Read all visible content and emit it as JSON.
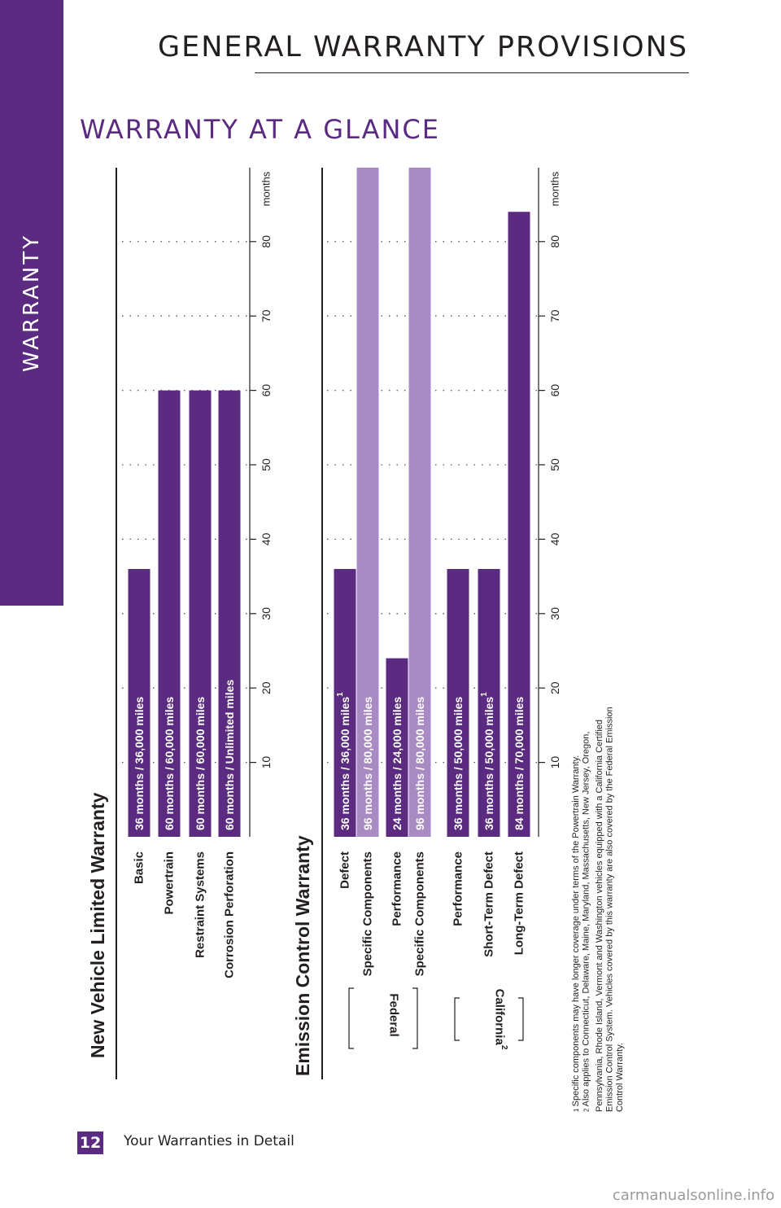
{
  "sidebar": {
    "label": "WARRANTY"
  },
  "header": {
    "title": "GENERAL WARRANTY PROVISIONS"
  },
  "section_title": "WARRANTY AT A GLANCE",
  "footer": {
    "page_number": "12",
    "text": "Your Warranties in Detail"
  },
  "watermark": "carmanualsonline.info",
  "colors": {
    "accent": "#5b2a81",
    "light_bar": "#a98bc3",
    "text": "#231f20"
  },
  "chart_data": [
    {
      "type": "bar",
      "orientation": "rotated-90-ccw",
      "title": "New Vehicle Limited Warranty",
      "axis_unit": "months",
      "ticks": [
        10,
        20,
        30,
        40,
        50,
        60,
        70,
        80
      ],
      "xlim": [
        0,
        90
      ],
      "grid": true,
      "bars": [
        {
          "category": "Basic",
          "months": 36,
          "label": "36 months  /  36,000 miles",
          "note": "",
          "style": "dark"
        },
        {
          "category": "Powertrain",
          "months": 60,
          "label": "60 months  /  60,000 miles",
          "note": "",
          "style": "dark"
        },
        {
          "category": "Restraint Systems",
          "months": 60,
          "label": "60 months  /  60,000 miles",
          "note": "",
          "style": "dark"
        },
        {
          "category": "Corrosion Perforation",
          "months": 60,
          "label": "60 months  /  Unlimited miles",
          "note": "",
          "style": "dark"
        }
      ]
    },
    {
      "type": "bar",
      "orientation": "rotated-90-ccw",
      "title": "Emission Control Warranty",
      "axis_unit": "months",
      "ticks": [
        10,
        20,
        30,
        40,
        50,
        60,
        70,
        80
      ],
      "xlim": [
        0,
        90
      ],
      "grid": true,
      "groups": [
        {
          "label": "Federal",
          "sup": ""
        },
        {
          "label": "California",
          "sup": "2"
        }
      ],
      "bars": [
        {
          "category": "Defect",
          "group": "Federal",
          "months": 36,
          "label": "36 months  /  36,000 miles",
          "note": "1",
          "style": "dark"
        },
        {
          "category": "Specific Components",
          "group": "Federal",
          "months": 96,
          "label": "96 months  /  80,000 miles",
          "note": "",
          "style": "light"
        },
        {
          "category": "Performance",
          "group": "Federal",
          "months": 24,
          "label": "24 months  /  24,000 miles",
          "note": "",
          "style": "dark"
        },
        {
          "category": "Specific Components",
          "group": "Federal",
          "months": 96,
          "label": "96 months  /  80,000 miles",
          "note": "",
          "style": "light"
        },
        {
          "category": "Performance",
          "group": "California",
          "months": 36,
          "label": "36 months  /  50,000 miles",
          "note": "",
          "style": "dark"
        },
        {
          "category": "Short-Term Defect",
          "group": "California",
          "months": 36,
          "label": "36 months  /  50,000 miles",
          "note": "1",
          "style": "dark"
        },
        {
          "category": "Long-Term Defect",
          "group": "California",
          "months": 84,
          "label": "84 months  /  70,000 miles",
          "note": "",
          "style": "dark"
        }
      ]
    }
  ],
  "footnotes": [
    {
      "mark": "1",
      "lines": [
        "Specific components may have longer coverage under terms of the Powertrain Warranty."
      ]
    },
    {
      "mark": "2",
      "lines": [
        "Also applies to Connecticut, Delaware, Maine, Maryland, Massachusetts, New Jersey, Oregon,",
        "Pennsylvania, Rhode Island, Vermont and Washington vehicles equipped with a California Certified",
        "Emission Control System. Vehicles covered by this warranty are also covered by the Federal Emission",
        "Control Warranty."
      ]
    }
  ]
}
